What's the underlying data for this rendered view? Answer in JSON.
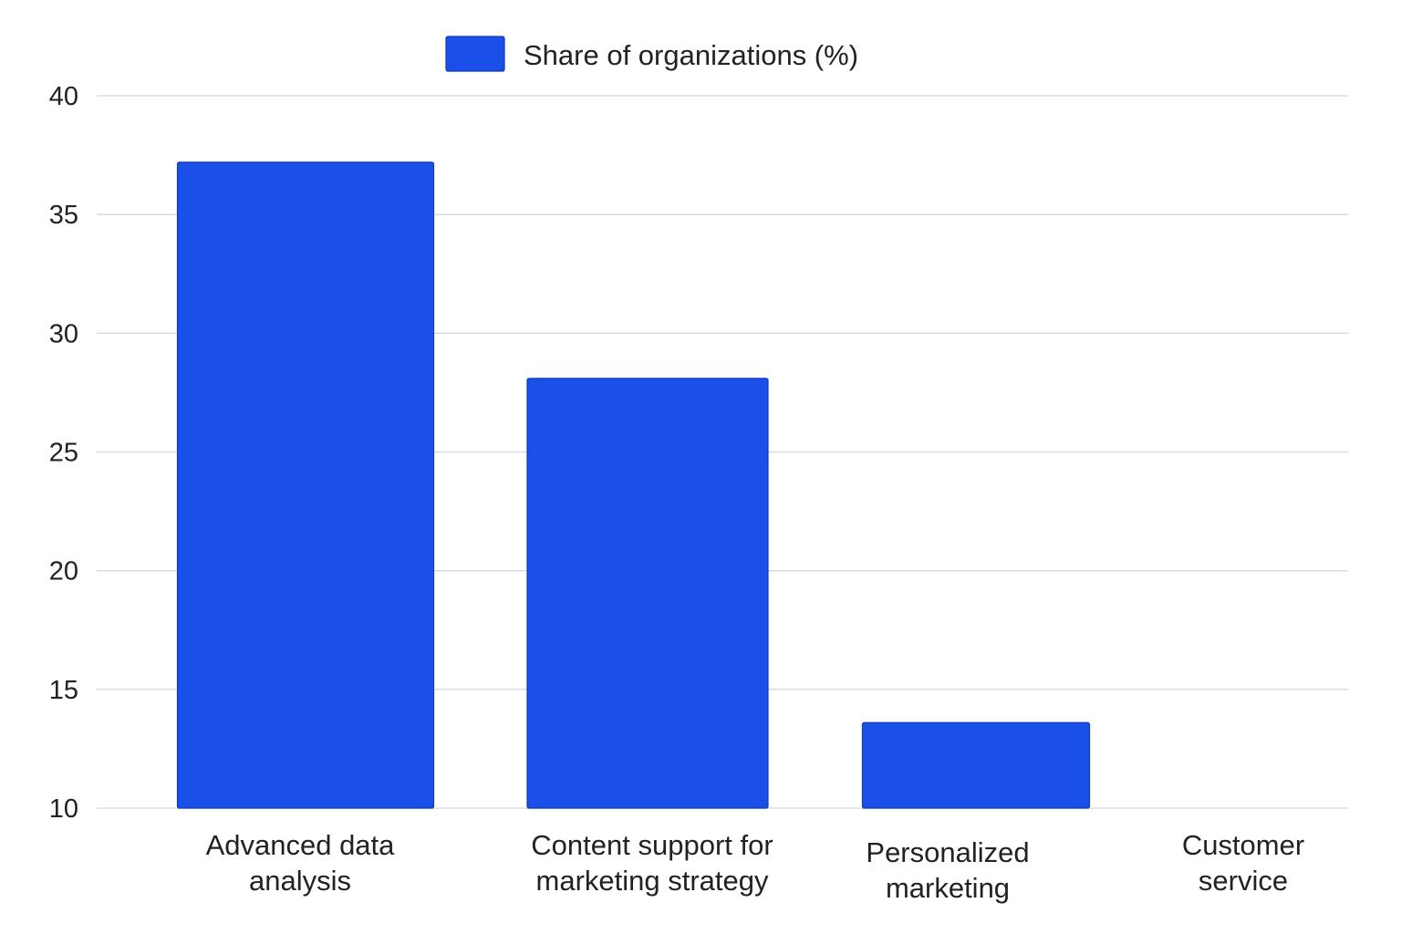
{
  "chart_data": {
    "type": "bar",
    "categories": [
      [
        "Advanced data",
        "analysis"
      ],
      [
        "Content support for",
        "marketing strategy"
      ],
      [
        "Personalized",
        "marketing"
      ],
      [
        "Customer",
        "service"
      ]
    ],
    "series": [
      {
        "name": "Share of organizations (%)",
        "values": [
          37.2,
          28.1,
          13.6,
          10
        ],
        "color": "#1a4fe8"
      }
    ],
    "ylim": [
      10,
      40
    ],
    "yticks": [
      10,
      15,
      20,
      25,
      30,
      35,
      40
    ],
    "grid": true,
    "legend_position": "top-center",
    "title": "",
    "xlabel": "",
    "ylabel": ""
  }
}
